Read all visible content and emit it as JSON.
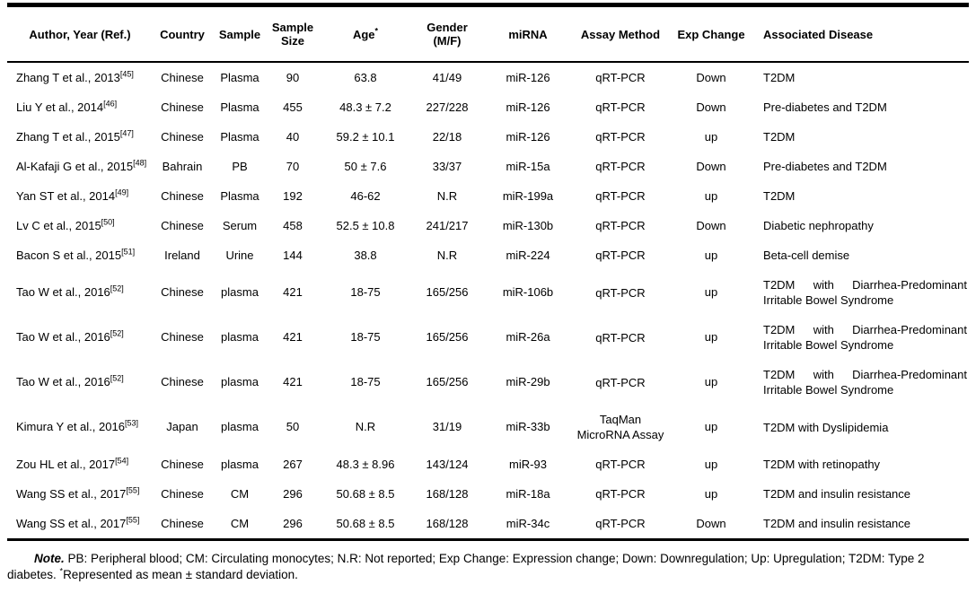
{
  "table": {
    "columns": [
      {
        "key": "author",
        "label": "Author, Year (Ref.)"
      },
      {
        "key": "country",
        "label": "Country"
      },
      {
        "key": "sample",
        "label": "Sample"
      },
      {
        "key": "sample_size",
        "label": "Sample Size"
      },
      {
        "key": "age",
        "label": "Age",
        "sup": "*"
      },
      {
        "key": "gender",
        "label": "Gender (M/F)"
      },
      {
        "key": "mirna",
        "label": "miRNA"
      },
      {
        "key": "assay",
        "label": "Assay Method"
      },
      {
        "key": "exp_change",
        "label": "Exp Change"
      },
      {
        "key": "disease",
        "label": "Associated Disease"
      }
    ],
    "rows": [
      {
        "author": "Zhang T et al., 2013",
        "ref": "[45]",
        "country": "Chinese",
        "sample": "Plasma",
        "sample_size": "90",
        "age": "63.8",
        "gender": "41/49",
        "mirna": "miR-126",
        "assay": "qRT-PCR",
        "exp_change": "Down",
        "disease": "T2DM"
      },
      {
        "author": "Liu Y et al., 2014",
        "ref": "[46]",
        "country": "Chinese",
        "sample": "Plasma",
        "sample_size": "455",
        "age": "48.3 ± 7.2",
        "gender": "227/228",
        "mirna": "miR-126",
        "assay": "qRT-PCR",
        "exp_change": "Down",
        "disease": "Pre-diabetes and T2DM"
      },
      {
        "author": "Zhang T et al., 2015",
        "ref": "[47]",
        "country": "Chinese",
        "sample": "Plasma",
        "sample_size": "40",
        "age": "59.2 ± 10.1",
        "gender": "22/18",
        "mirna": "miR-126",
        "assay": "qRT-PCR",
        "exp_change": "up",
        "disease": "T2DM"
      },
      {
        "author": "Al-Kafaji G et al., 2015",
        "ref": "[48]",
        "country": "Bahrain",
        "sample": "PB",
        "sample_size": "70",
        "age": "50 ± 7.6",
        "gender": "33/37",
        "mirna": "miR-15a",
        "assay": "qRT-PCR",
        "exp_change": "Down",
        "disease": "Pre-diabetes and T2DM"
      },
      {
        "author": "Yan ST et al., 2014",
        "ref": "[49]",
        "country": "Chinese",
        "sample": "Plasma",
        "sample_size": "192",
        "age": "46-62",
        "gender": "N.R",
        "mirna": "miR-199a",
        "assay": "qRT-PCR",
        "exp_change": "up",
        "disease": "T2DM"
      },
      {
        "author": "Lv C et al., 2015",
        "ref": "[50]",
        "country": "Chinese",
        "sample": "Serum",
        "sample_size": "458",
        "age": "52.5 ± 10.8",
        "gender": "241/217",
        "mirna": "miR-130b",
        "assay": "qRT-PCR",
        "exp_change": "Down",
        "disease": "Diabetic nephropathy"
      },
      {
        "author": "Bacon S et al., 2015",
        "ref": "[51]",
        "country": "Ireland",
        "sample": "Urine",
        "sample_size": "144",
        "age": "38.8",
        "gender": "N.R",
        "mirna": "miR-224",
        "assay": "qRT-PCR",
        "exp_change": "up",
        "disease": "Beta-cell demise"
      },
      {
        "author": "Tao W et al., 2016",
        "ref": "[52]",
        "country": "Chinese",
        "sample": "plasma",
        "sample_size": "421",
        "age": "18-75",
        "gender": "165/256",
        "mirna": "miR-106b",
        "assay": "qRT-PCR",
        "exp_change": "up",
        "disease": "T2DM with Diarrhea-Predominant Irritable Bowel Syndrome"
      },
      {
        "author": "Tao W et al., 2016",
        "ref": "[52]",
        "country": "Chinese",
        "sample": "plasma",
        "sample_size": "421",
        "age": "18-75",
        "gender": "165/256",
        "mirna": "miR-26a",
        "assay": "qRT-PCR",
        "exp_change": "up",
        "disease": "T2DM with Diarrhea-Predominant Irritable Bowel Syndrome"
      },
      {
        "author": "Tao W et al., 2016",
        "ref": "[52]",
        "country": "Chinese",
        "sample": "plasma",
        "sample_size": "421",
        "age": "18-75",
        "gender": "165/256",
        "mirna": "miR-29b",
        "assay": "qRT-PCR",
        "exp_change": "up",
        "disease": "T2DM with Diarrhea-Predominant Irritable Bowel Syndrome"
      },
      {
        "author": "Kimura Y et al., 2016",
        "ref": "[53]",
        "country": "Japan",
        "sample": "plasma",
        "sample_size": "50",
        "age": "N.R",
        "gender": "31/19",
        "mirna": "miR-33b",
        "assay": "TaqMan MicroRNA Assay",
        "exp_change": "up",
        "disease": "T2DM with Dyslipidemia"
      },
      {
        "author": "Zou HL et al., 2017",
        "ref": "[54]",
        "country": "Chinese",
        "sample": "plasma",
        "sample_size": "267",
        "age": "48.3 ± 8.96",
        "gender": "143/124",
        "mirna": "miR-93",
        "assay": "qRT-PCR",
        "exp_change": "up",
        "disease": "T2DM with retinopathy"
      },
      {
        "author": "Wang SS et al., 2017",
        "ref": "[55]",
        "country": "Chinese",
        "sample": "CM",
        "sample_size": "296",
        "age": "50.68 ± 8.5",
        "gender": "168/128",
        "mirna": "miR-18a",
        "assay": "qRT-PCR",
        "exp_change": "up",
        "disease": "T2DM and insulin resistance"
      },
      {
        "author": "Wang SS et al., 2017",
        "ref": "[55]",
        "country": "Chinese",
        "sample": "CM",
        "sample_size": "296",
        "age": "50.68 ± 8.5",
        "gender": "168/128",
        "mirna": "miR-34c",
        "assay": "qRT-PCR",
        "exp_change": "Down",
        "disease": "T2DM and insulin resistance"
      }
    ]
  },
  "note": {
    "label": "Note.",
    "text_before_sup": " PB: Peripheral blood; CM: Circulating monocytes; N.R: Not reported; Exp Change: Expression change; Down: Downregulation; Up: Upregulation; T2DM: Type 2 diabetes. ",
    "sup": "*",
    "text_after_sup": "Represented as mean ± standard deviation."
  },
  "colors": {
    "text": "#000000",
    "background": "#ffffff",
    "rule": "#000000"
  }
}
